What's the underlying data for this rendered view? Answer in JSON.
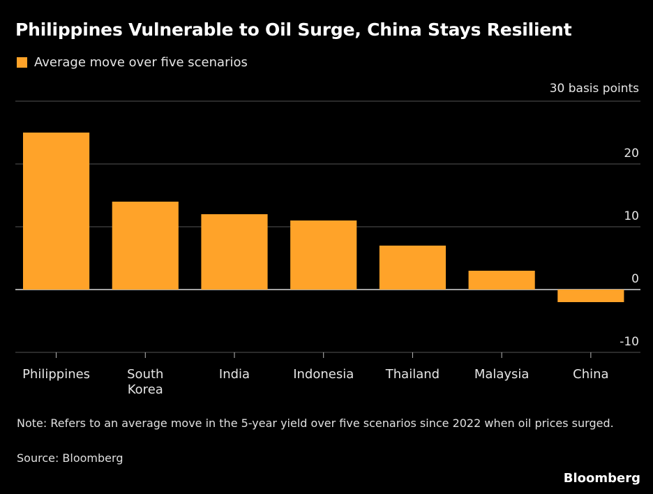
{
  "header": {
    "title": "Philippines Vulnerable to Oil Surge, China Stays Resilient"
  },
  "legend": {
    "label": "Average move over five scenarios",
    "color": "#FFA329"
  },
  "footer": {
    "note": "Note: Refers to an average move in the 5-year yield over five scenarios since 2022 when oil prices surged.",
    "source": "Source: Bloomberg",
    "brand": "Bloomberg"
  },
  "chart_data": {
    "type": "bar",
    "title": "Philippines Vulnerable to Oil Surge, China Stays Resilient",
    "unit_label": "30 basis points",
    "xlabel": "",
    "ylabel": "",
    "categories": [
      [
        "Philippines"
      ],
      [
        "South",
        "Korea"
      ],
      [
        "India"
      ],
      [
        "Indonesia"
      ],
      [
        "Thailand"
      ],
      [
        "Malaysia"
      ],
      [
        "China"
      ]
    ],
    "series": [
      {
        "name": "Average move over five scenarios",
        "values": [
          25,
          14,
          12,
          11,
          7,
          3,
          -2
        ]
      }
    ],
    "ylim": [
      -10,
      30
    ],
    "yticks": [
      {
        "value": 30,
        "label": ""
      },
      {
        "value": 20,
        "label": "20"
      },
      {
        "value": 10,
        "label": "10"
      },
      {
        "value": 0,
        "label": "0"
      },
      {
        "value": -10,
        "label": "-10"
      }
    ],
    "grid": true,
    "legend_position": "top-left",
    "bar_color": "#FFA329",
    "grid_color": "#555555",
    "zero_line_color": "#d9d9d9"
  }
}
